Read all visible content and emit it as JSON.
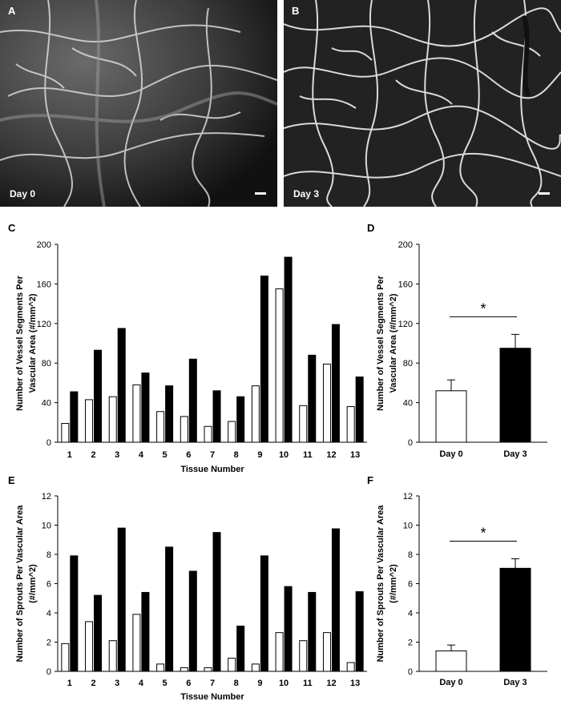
{
  "micrographs": [
    {
      "letter": "A",
      "label": "Day 0"
    },
    {
      "letter": "B",
      "label": "Day 3"
    }
  ],
  "chart_data": [
    {
      "panel": "C",
      "type": "bar",
      "categories": [
        "1",
        "2",
        "3",
        "4",
        "5",
        "6",
        "7",
        "8",
        "9",
        "10",
        "11",
        "12",
        "13"
      ],
      "series": [
        {
          "color": "#ffffff",
          "values": [
            19,
            43,
            46,
            58,
            31,
            26,
            16,
            21,
            57,
            155,
            37,
            79,
            36
          ]
        },
        {
          "color": "#000000",
          "values": [
            51,
            93,
            115,
            70,
            57,
            84,
            52,
            46,
            168,
            187,
            88,
            119,
            66
          ]
        }
      ],
      "xlabel": "Tissue Number",
      "ylabel": "Number of Vessel Segments Per Vascular Area (#/mm^2)",
      "ylim": [
        0,
        200
      ],
      "yticks": [
        0,
        40,
        80,
        120,
        160,
        200
      ]
    },
    {
      "panel": "D",
      "type": "bar",
      "categories": [
        "Day 0",
        "Day 3"
      ],
      "values": [
        52,
        95
      ],
      "errors": [
        11,
        14
      ],
      "colors": [
        "#ffffff",
        "#000000"
      ],
      "significance": "*",
      "ylabel": "Number of Vessel Segments Per Vascular Area (#/mm^2)",
      "ylim": [
        0,
        200
      ],
      "yticks": [
        0,
        40,
        80,
        120,
        160,
        200
      ]
    },
    {
      "panel": "E",
      "type": "bar",
      "categories": [
        "1",
        "2",
        "3",
        "4",
        "5",
        "6",
        "7",
        "8",
        "9",
        "10",
        "11",
        "12",
        "13"
      ],
      "series": [
        {
          "color": "#ffffff",
          "values": [
            1.9,
            3.4,
            2.1,
            3.9,
            0.5,
            0.25,
            0.25,
            0.9,
            0.5,
            2.65,
            2.1,
            2.65,
            0.6
          ]
        },
        {
          "color": "#000000",
          "values": [
            7.9,
            5.2,
            9.8,
            5.4,
            8.5,
            6.85,
            9.5,
            3.1,
            7.9,
            5.8,
            5.4,
            9.75,
            5.45
          ]
        }
      ],
      "xlabel": "Tissue Number",
      "ylabel": "Number of Sprouts Per Vascular Area (#/mm^2)",
      "ylim": [
        0,
        12
      ],
      "yticks": [
        0,
        2,
        4,
        6,
        8,
        10,
        12
      ]
    },
    {
      "panel": "F",
      "type": "bar",
      "categories": [
        "Day 0",
        "Day 3"
      ],
      "values": [
        1.4,
        7.05
      ],
      "errors": [
        0.4,
        0.65
      ],
      "colors": [
        "#ffffff",
        "#000000"
      ],
      "significance": "*",
      "ylabel": "Number of Sprouts Per Vascular Area (#/mm^2)",
      "ylim": [
        0,
        12
      ],
      "yticks": [
        0,
        2,
        4,
        6,
        8,
        10,
        12
      ]
    }
  ]
}
